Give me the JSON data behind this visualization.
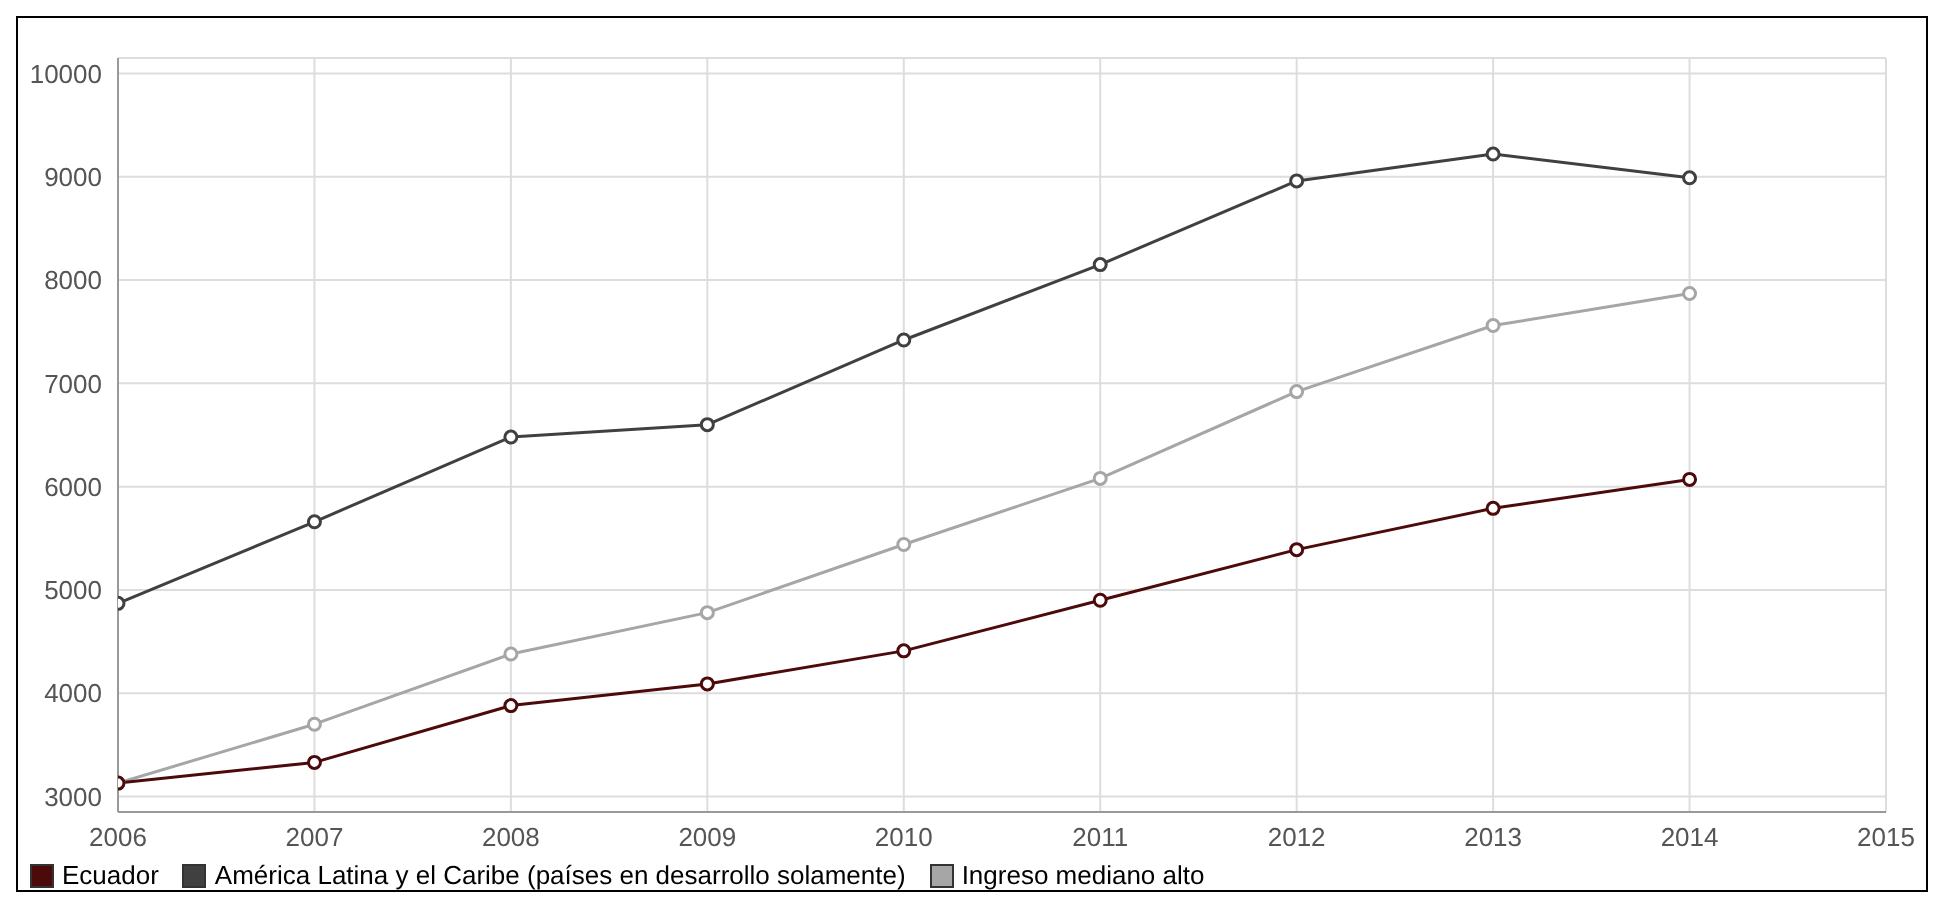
{
  "chart_data": {
    "type": "line",
    "x": [
      2006,
      2007,
      2008,
      2009,
      2010,
      2011,
      2012,
      2013,
      2014
    ],
    "series": [
      {
        "name": "Ecuador",
        "color": "#4d0a0a",
        "values": [
          3130,
          3330,
          3880,
          4090,
          4410,
          4900,
          5390,
          5790,
          6070
        ]
      },
      {
        "name": "América Latina y el Caribe (países en desarrollo solamente)",
        "color": "#404040",
        "values": [
          4870,
          5660,
          6480,
          6600,
          7420,
          8150,
          8960,
          9220,
          8990
        ]
      },
      {
        "name": "Ingreso mediano alto",
        "color": "#a6a6a6",
        "values": [
          3130,
          3700,
          4380,
          4780,
          5440,
          6080,
          6920,
          7560,
          7870
        ]
      }
    ],
    "xlim": [
      2006,
      2015
    ],
    "xticks": [
      2006,
      2007,
      2008,
      2009,
      2010,
      2011,
      2012,
      2013,
      2014,
      2015
    ],
    "ylim": [
      2850,
      10150
    ],
    "yticks": [
      3000,
      4000,
      5000,
      6000,
      7000,
      8000,
      9000,
      10000
    ],
    "grid": true,
    "legend": "bottom left",
    "marker": "circle",
    "line_style": "solid"
  }
}
